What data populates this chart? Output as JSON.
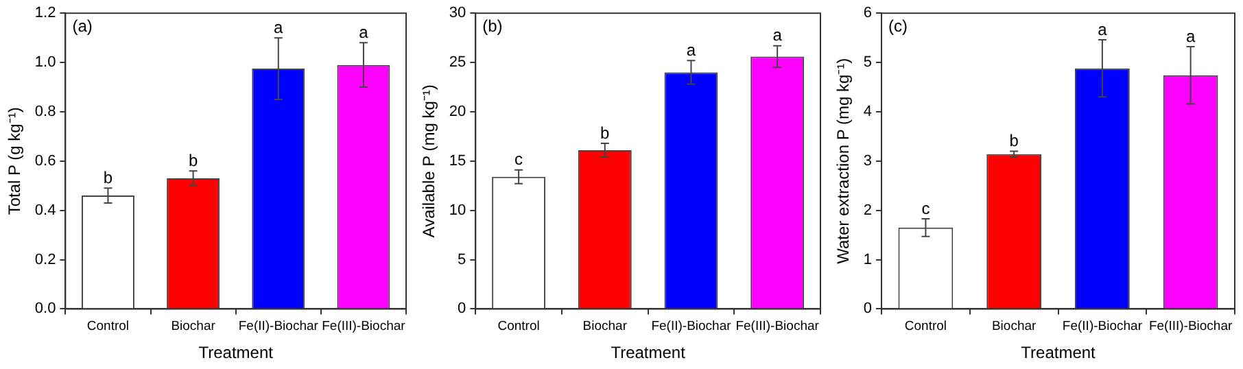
{
  "chart_data": [
    {
      "type": "bar",
      "title": "(a)",
      "xlabel": "Treatment",
      "ylabel": "Total P (g kg⁻¹)",
      "categories": [
        "Control",
        "Biochar",
        "Fe(II)-Biochar",
        "Fe(III)-Biochar"
      ],
      "values": [
        0.46,
        0.53,
        0.975,
        0.99
      ],
      "errors": [
        0.03,
        0.03,
        0.125,
        0.09
      ],
      "colors": [
        "#ffffff",
        "#ff0000",
        "#0000ff",
        "#ff00ff"
      ],
      "ylim": [
        0,
        1.2
      ],
      "yticks": [
        {
          "value": 0,
          "label": "0.0"
        },
        {
          "value": 0.2,
          "label": "0.2"
        },
        {
          "value": 0.4,
          "label": "0.4"
        },
        {
          "value": 0.6,
          "label": "0.6"
        },
        {
          "value": 0.8,
          "label": "0.8"
        },
        {
          "value": 1,
          "label": "1.0"
        },
        {
          "value": 1.2,
          "label": "1.2"
        }
      ],
      "grid": false,
      "legend": false,
      "annotations": [
        {
          "text": "b",
          "x": "Control",
          "y": 0.49
        },
        {
          "text": "b",
          "x": "Biochar",
          "y": 0.56
        },
        {
          "text": "a",
          "x": "Fe(II)-Biochar",
          "y": 1.1
        },
        {
          "text": "a",
          "x": "Fe(III)-Biochar",
          "y": 1.08
        }
      ]
    },
    {
      "type": "bar",
      "title": "(b)",
      "xlabel": "Treatment",
      "ylabel": "Available P (mg kg⁻¹)",
      "categories": [
        "Control",
        "Biochar",
        "Fe(II)-Biochar",
        "Fe(III)-Biochar"
      ],
      "values": [
        13.4,
        16.1,
        24.0,
        25.6
      ],
      "errors": [
        0.7,
        0.7,
        1.2,
        1.1
      ],
      "colors": [
        "#ffffff",
        "#ff0000",
        "#0000ff",
        "#ff00ff"
      ],
      "ylim": [
        0,
        30
      ],
      "yticks": [
        0,
        5,
        10,
        15,
        20,
        25,
        30
      ],
      "grid": false,
      "legend": false,
      "annotations": [
        {
          "text": "c",
          "x": "Control",
          "y": 14.1
        },
        {
          "text": "b",
          "x": "Biochar",
          "y": 16.8
        },
        {
          "text": "a",
          "x": "Fe(II)-Biochar",
          "y": 25.2
        },
        {
          "text": "a",
          "x": "Fe(III)-Biochar",
          "y": 26.7
        }
      ]
    },
    {
      "type": "bar",
      "title": "(c)",
      "xlabel": "Treatment",
      "ylabel": "Water extraction P (mg kg⁻¹)",
      "categories": [
        "Control",
        "Biochar",
        "Fe(II)-Biochar",
        "Fe(III)-Biochar"
      ],
      "values": [
        1.65,
        3.14,
        4.88,
        4.74
      ],
      "errors": [
        0.18,
        0.06,
        0.58,
        0.58
      ],
      "colors": [
        "#ffffff",
        "#ff0000",
        "#0000ff",
        "#ff00ff"
      ],
      "ylim": [
        0,
        6
      ],
      "yticks": [
        0,
        1,
        2,
        3,
        4,
        5,
        6
      ],
      "grid": false,
      "legend": false,
      "annotations": [
        {
          "text": "c",
          "x": "Control",
          "y": 1.83
        },
        {
          "text": "b",
          "x": "Biochar",
          "y": 3.2
        },
        {
          "text": "a",
          "x": "Fe(II)-Biochar",
          "y": 5.46
        },
        {
          "text": "a",
          "x": "Fe(III)-Biochar",
          "y": 5.32
        }
      ]
    }
  ]
}
